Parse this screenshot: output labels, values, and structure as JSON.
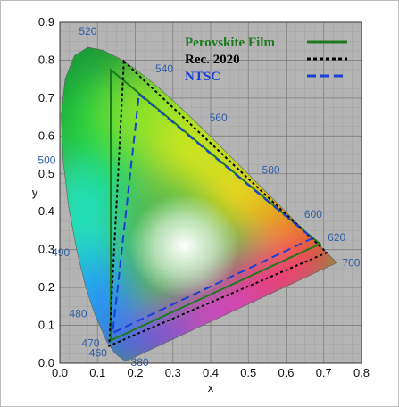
{
  "chart_data": {
    "type": "scatter",
    "title": "",
    "xlabel": "x",
    "ylabel": "y",
    "xlim": [
      0,
      0.8
    ],
    "ylim": [
      0,
      0.9
    ],
    "x_ticks": [
      "0.0",
      "0.1",
      "0.2",
      "0.3",
      "0.4",
      "0.5",
      "0.6",
      "0.7",
      "0.8"
    ],
    "y_ticks": [
      "0.0",
      "0.1",
      "0.2",
      "0.3",
      "0.4",
      "0.5",
      "0.6",
      "0.7",
      "0.8",
      "0.9"
    ],
    "grid": true,
    "legend_position": "top-right",
    "spectral_locus": [
      [
        0.1741,
        0.005
      ],
      [
        0.1566,
        0.0177
      ],
      [
        0.144,
        0.0297
      ],
      [
        0.1241,
        0.0578
      ],
      [
        0.0913,
        0.1327
      ],
      [
        0.0687,
        0.2007
      ],
      [
        0.0454,
        0.295
      ],
      [
        0.0235,
        0.4127
      ],
      [
        0.0082,
        0.5384
      ],
      [
        0.0039,
        0.6548
      ],
      [
        0.0139,
        0.7502
      ],
      [
        0.0389,
        0.812
      ],
      [
        0.0743,
        0.8338
      ],
      [
        0.1142,
        0.8262
      ],
      [
        0.1547,
        0.8059
      ],
      [
        0.1929,
        0.7816
      ],
      [
        0.2296,
        0.7543
      ],
      [
        0.2658,
        0.7243
      ],
      [
        0.3016,
        0.6923
      ],
      [
        0.3373,
        0.6589
      ],
      [
        0.3731,
        0.6245
      ],
      [
        0.4087,
        0.5896
      ],
      [
        0.4441,
        0.5547
      ],
      [
        0.4788,
        0.5202
      ],
      [
        0.5125,
        0.4866
      ],
      [
        0.5448,
        0.4544
      ],
      [
        0.5752,
        0.4242
      ],
      [
        0.6029,
        0.3965
      ],
      [
        0.627,
        0.3725
      ],
      [
        0.6482,
        0.3514
      ],
      [
        0.6658,
        0.334
      ],
      [
        0.6801,
        0.3197
      ],
      [
        0.6915,
        0.3083
      ],
      [
        0.7006,
        0.2993
      ],
      [
        0.7079,
        0.292
      ],
      [
        0.7347,
        0.2653
      ]
    ],
    "wavelength_labels": [
      {
        "label": "380",
        "x": 0.1741,
        "y": 0.005
      },
      {
        "label": "460",
        "x": 0.144,
        "y": 0.0297
      },
      {
        "label": "470",
        "x": 0.1241,
        "y": 0.0578
      },
      {
        "label": "480",
        "x": 0.0913,
        "y": 0.1327
      },
      {
        "label": "490",
        "x": 0.0454,
        "y": 0.295
      },
      {
        "label": "500",
        "x": 0.0082,
        "y": 0.5384
      },
      {
        "label": "520",
        "x": 0.0743,
        "y": 0.8338
      },
      {
        "label": "540",
        "x": 0.2296,
        "y": 0.7543
      },
      {
        "label": "560",
        "x": 0.3731,
        "y": 0.6245
      },
      {
        "label": "580",
        "x": 0.5125,
        "y": 0.4866
      },
      {
        "label": "600",
        "x": 0.627,
        "y": 0.3725
      },
      {
        "label": "620",
        "x": 0.6915,
        "y": 0.3083
      },
      {
        "label": "700",
        "x": 0.7347,
        "y": 0.2653
      }
    ],
    "series": [
      {
        "name": "Perovskite Film",
        "color": "#1e7a1e",
        "style": "solid",
        "points": [
          [
            0.135,
            0.775
          ],
          [
            0.69,
            0.315
          ],
          [
            0.135,
            0.06
          ]
        ]
      },
      {
        "name": "Rec. 2020",
        "color": "#000000",
        "style": "dotted",
        "points": [
          [
            0.17,
            0.797
          ],
          [
            0.708,
            0.292
          ],
          [
            0.131,
            0.046
          ]
        ]
      },
      {
        "name": "NTSC",
        "color": "#1a3fd6",
        "style": "dashed",
        "points": [
          [
            0.21,
            0.71
          ],
          [
            0.67,
            0.33
          ],
          [
            0.14,
            0.08
          ]
        ]
      }
    ]
  }
}
